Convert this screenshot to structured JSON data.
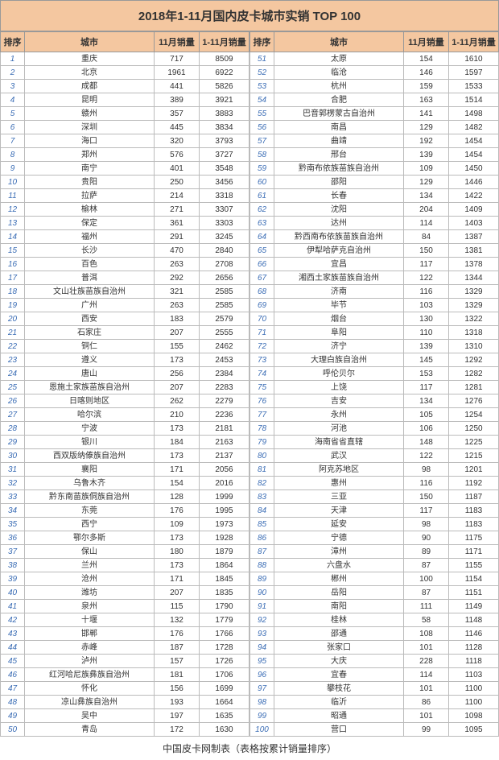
{
  "title": "2018年1-11月国内皮卡城巿实销 TOP 100",
  "footer": "中国皮卡网制表（表格按累计销量排序）",
  "headers": {
    "rank": "排序",
    "city": "城市",
    "nov": "11月销量",
    "cum": "1-11月销量"
  },
  "colors": {
    "header_bg": "#f4c7a0",
    "rank_color": "#3b6db5",
    "border": "#999999"
  },
  "rows": [
    {
      "r": 1,
      "c": "重庆",
      "n": 717,
      "t": 8509
    },
    {
      "r": 2,
      "c": "北京",
      "n": 1961,
      "t": 6922
    },
    {
      "r": 3,
      "c": "成都",
      "n": 441,
      "t": 5826
    },
    {
      "r": 4,
      "c": "昆明",
      "n": 389,
      "t": 3921
    },
    {
      "r": 5,
      "c": "赣州",
      "n": 357,
      "t": 3883
    },
    {
      "r": 6,
      "c": "深圳",
      "n": 445,
      "t": 3834
    },
    {
      "r": 7,
      "c": "海口",
      "n": 320,
      "t": 3793
    },
    {
      "r": 8,
      "c": "郑州",
      "n": 576,
      "t": 3727
    },
    {
      "r": 9,
      "c": "南宁",
      "n": 401,
      "t": 3548
    },
    {
      "r": 10,
      "c": "贵阳",
      "n": 250,
      "t": 3456
    },
    {
      "r": 11,
      "c": "拉萨",
      "n": 214,
      "t": 3318
    },
    {
      "r": 12,
      "c": "榆林",
      "n": 271,
      "t": 3307
    },
    {
      "r": 13,
      "c": "保定",
      "n": 361,
      "t": 3303
    },
    {
      "r": 14,
      "c": "福州",
      "n": 291,
      "t": 3245
    },
    {
      "r": 15,
      "c": "长沙",
      "n": 470,
      "t": 2840
    },
    {
      "r": 16,
      "c": "百色",
      "n": 263,
      "t": 2708
    },
    {
      "r": 17,
      "c": "普洱",
      "n": 292,
      "t": 2656
    },
    {
      "r": 18,
      "c": "文山壮族苗族自治州",
      "n": 321,
      "t": 2585
    },
    {
      "r": 19,
      "c": "广州",
      "n": 263,
      "t": 2585
    },
    {
      "r": 20,
      "c": "西安",
      "n": 183,
      "t": 2579
    },
    {
      "r": 21,
      "c": "石家庄",
      "n": 207,
      "t": 2555
    },
    {
      "r": 22,
      "c": "铜仁",
      "n": 155,
      "t": 2462
    },
    {
      "r": 23,
      "c": "遵义",
      "n": 173,
      "t": 2453
    },
    {
      "r": 24,
      "c": "唐山",
      "n": 256,
      "t": 2384
    },
    {
      "r": 25,
      "c": "恩施土家族苗族自治州",
      "n": 207,
      "t": 2283
    },
    {
      "r": 26,
      "c": "日喀则地区",
      "n": 262,
      "t": 2279
    },
    {
      "r": 27,
      "c": "哈尔滨",
      "n": 210,
      "t": 2236
    },
    {
      "r": 28,
      "c": "宁波",
      "n": 173,
      "t": 2181
    },
    {
      "r": 29,
      "c": "银川",
      "n": 184,
      "t": 2163
    },
    {
      "r": 30,
      "c": "西双版纳傣族自治州",
      "n": 173,
      "t": 2137
    },
    {
      "r": 31,
      "c": "襄阳",
      "n": 171,
      "t": 2056
    },
    {
      "r": 32,
      "c": "乌鲁木齐",
      "n": 154,
      "t": 2016
    },
    {
      "r": 33,
      "c": "黔东南苗族侗族自治州",
      "n": 128,
      "t": 1999
    },
    {
      "r": 34,
      "c": "东莞",
      "n": 176,
      "t": 1995
    },
    {
      "r": 35,
      "c": "西宁",
      "n": 109,
      "t": 1973
    },
    {
      "r": 36,
      "c": "鄂尔多斯",
      "n": 173,
      "t": 1928
    },
    {
      "r": 37,
      "c": "保山",
      "n": 180,
      "t": 1879
    },
    {
      "r": 38,
      "c": "兰州",
      "n": 173,
      "t": 1864
    },
    {
      "r": 39,
      "c": "沧州",
      "n": 171,
      "t": 1845
    },
    {
      "r": 40,
      "c": "潍坊",
      "n": 207,
      "t": 1835
    },
    {
      "r": 41,
      "c": "泉州",
      "n": 115,
      "t": 1790
    },
    {
      "r": 42,
      "c": "十堰",
      "n": 132,
      "t": 1779
    },
    {
      "r": 43,
      "c": "邯郸",
      "n": 176,
      "t": 1766
    },
    {
      "r": 44,
      "c": "赤峰",
      "n": 187,
      "t": 1728
    },
    {
      "r": 45,
      "c": "泸州",
      "n": 157,
      "t": 1726
    },
    {
      "r": 46,
      "c": "红河哈尼族彝族自治州",
      "n": 181,
      "t": 1706
    },
    {
      "r": 47,
      "c": "怀化",
      "n": 156,
      "t": 1699
    },
    {
      "r": 48,
      "c": "凉山彝族自治州",
      "n": 193,
      "t": 1664
    },
    {
      "r": 49,
      "c": "吴中",
      "n": 197,
      "t": 1635
    },
    {
      "r": 50,
      "c": "青岛",
      "n": 172,
      "t": 1630
    },
    {
      "r": 51,
      "c": "太原",
      "n": 154,
      "t": 1610
    },
    {
      "r": 52,
      "c": "临沧",
      "n": 146,
      "t": 1597
    },
    {
      "r": 53,
      "c": "杭州",
      "n": 159,
      "t": 1533
    },
    {
      "r": 54,
      "c": "合肥",
      "n": 163,
      "t": 1514
    },
    {
      "r": 55,
      "c": "巴音郭楞蒙古自治州",
      "n": 141,
      "t": 1498
    },
    {
      "r": 56,
      "c": "南昌",
      "n": 129,
      "t": 1482
    },
    {
      "r": 57,
      "c": "曲靖",
      "n": 192,
      "t": 1454
    },
    {
      "r": 58,
      "c": "邢台",
      "n": 139,
      "t": 1454
    },
    {
      "r": 59,
      "c": "黔南布依族苗族自治州",
      "n": 109,
      "t": 1450
    },
    {
      "r": 60,
      "c": "邵阳",
      "n": 129,
      "t": 1446
    },
    {
      "r": 61,
      "c": "长春",
      "n": 134,
      "t": 1422
    },
    {
      "r": 62,
      "c": "沈阳",
      "n": 204,
      "t": 1409
    },
    {
      "r": 63,
      "c": "达州",
      "n": 114,
      "t": 1403
    },
    {
      "r": 64,
      "c": "黔西南布依族苗族自治州",
      "n": 84,
      "t": 1387
    },
    {
      "r": 65,
      "c": "伊犁哈萨克自治州",
      "n": 150,
      "t": 1381
    },
    {
      "r": 66,
      "c": "宜昌",
      "n": 117,
      "t": 1378
    },
    {
      "r": 67,
      "c": "湘西土家族苗族自治州",
      "n": 122,
      "t": 1344
    },
    {
      "r": 68,
      "c": "济南",
      "n": 116,
      "t": 1329
    },
    {
      "r": 69,
      "c": "毕节",
      "n": 103,
      "t": 1329
    },
    {
      "r": 70,
      "c": "烟台",
      "n": 130,
      "t": 1322
    },
    {
      "r": 71,
      "c": "阜阳",
      "n": 110,
      "t": 1318
    },
    {
      "r": 72,
      "c": "济宁",
      "n": 139,
      "t": 1310
    },
    {
      "r": 73,
      "c": "大理白族自治州",
      "n": 145,
      "t": 1292
    },
    {
      "r": 74,
      "c": "呼伦贝尔",
      "n": 153,
      "t": 1282
    },
    {
      "r": 75,
      "c": "上饶",
      "n": 117,
      "t": 1281
    },
    {
      "r": 76,
      "c": "吉安",
      "n": 134,
      "t": 1276
    },
    {
      "r": 77,
      "c": "永州",
      "n": 105,
      "t": 1254
    },
    {
      "r": 78,
      "c": "河池",
      "n": 106,
      "t": 1250
    },
    {
      "r": 79,
      "c": "海南省省直辖",
      "n": 148,
      "t": 1225
    },
    {
      "r": 80,
      "c": "武汉",
      "n": 122,
      "t": 1215
    },
    {
      "r": 81,
      "c": "阿克苏地区",
      "n": 98,
      "t": 1201
    },
    {
      "r": 82,
      "c": "惠州",
      "n": 116,
      "t": 1192
    },
    {
      "r": 83,
      "c": "三亚",
      "n": 150,
      "t": 1187
    },
    {
      "r": 84,
      "c": "天津",
      "n": 117,
      "t": 1183
    },
    {
      "r": 85,
      "c": "延安",
      "n": 98,
      "t": 1183
    },
    {
      "r": 86,
      "c": "宁德",
      "n": 90,
      "t": 1175
    },
    {
      "r": 87,
      "c": "漳州",
      "n": 89,
      "t": 1171
    },
    {
      "r": 88,
      "c": "六盘水",
      "n": 87,
      "t": 1155
    },
    {
      "r": 89,
      "c": "郴州",
      "n": 100,
      "t": 1154
    },
    {
      "r": 90,
      "c": "岳阳",
      "n": 87,
      "t": 1151
    },
    {
      "r": 91,
      "c": "南阳",
      "n": 111,
      "t": 1149
    },
    {
      "r": 92,
      "c": "桂林",
      "n": 58,
      "t": 1148
    },
    {
      "r": 93,
      "c": "邵通",
      "n": 108,
      "t": 1146
    },
    {
      "r": 94,
      "c": "张家口",
      "n": 101,
      "t": 1128
    },
    {
      "r": 95,
      "c": "大庆",
      "n": 228,
      "t": 1118
    },
    {
      "r": 96,
      "c": "宜春",
      "n": 114,
      "t": 1103
    },
    {
      "r": 97,
      "c": "攀枝花",
      "n": 101,
      "t": 1100
    },
    {
      "r": 98,
      "c": "临沂",
      "n": 86,
      "t": 1100
    },
    {
      "r": 99,
      "c": "昭通",
      "n": 101,
      "t": 1098
    },
    {
      "r": 100,
      "c": "营口",
      "n": 99,
      "t": 1095
    }
  ]
}
